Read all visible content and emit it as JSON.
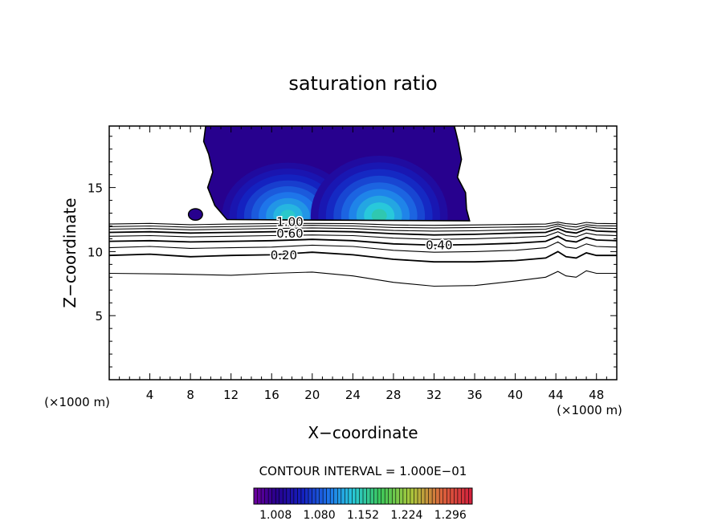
{
  "chart_data": {
    "type": "contour",
    "title": "saturation ratio",
    "xlabel": "X−coordinate",
    "ylabel": "Z−coordinate",
    "x_unit_left": "(×1000 m)",
    "x_unit_right": "(×1000 m)",
    "xlim": [
      0,
      50
    ],
    "ylim": [
      0,
      19.8
    ],
    "x_ticks": [
      4,
      8,
      12,
      16,
      20,
      24,
      28,
      32,
      36,
      40,
      44,
      48
    ],
    "y_ticks": [
      5,
      10,
      15
    ],
    "contour_interval_text": "CONTOUR INTERVAL = 1.000E−01",
    "colorbar": {
      "labels": [
        "1.008",
        "1.080",
        "1.152",
        "1.224",
        "1.296"
      ],
      "min": 0.972,
      "max": 1.332
    },
    "contour_labels": [
      {
        "text": "0.20",
        "x": 17.2,
        "z": 9.7
      },
      {
        "text": "0.40",
        "x": 32.5,
        "z": 10.5
      },
      {
        "text": "0.60",
        "x": 17.8,
        "z": 11.4
      },
      {
        "text": "1.00",
        "x": 17.8,
        "z": 12.3
      }
    ],
    "contour_lines": [
      {
        "level": 0.1,
        "points": [
          [
            0,
            8.3
          ],
          [
            6,
            8.25
          ],
          [
            12,
            8.15
          ],
          [
            16,
            8.3
          ],
          [
            20,
            8.4
          ],
          [
            24,
            8.1
          ],
          [
            28,
            7.6
          ],
          [
            32,
            7.3
          ],
          [
            36,
            7.35
          ],
          [
            40,
            7.7
          ],
          [
            43,
            8.0
          ],
          [
            44.2,
            8.45
          ],
          [
            45,
            8.1
          ],
          [
            46,
            8.0
          ],
          [
            47,
            8.5
          ],
          [
            48,
            8.3
          ],
          [
            50,
            8.3
          ]
        ]
      },
      {
        "level": 0.2,
        "points": [
          [
            0,
            9.7
          ],
          [
            4,
            9.8
          ],
          [
            8,
            9.6
          ],
          [
            12,
            9.7
          ],
          [
            16,
            9.75
          ],
          [
            20,
            9.95
          ],
          [
            24,
            9.75
          ],
          [
            28,
            9.4
          ],
          [
            32,
            9.2
          ],
          [
            36,
            9.2
          ],
          [
            40,
            9.3
          ],
          [
            43,
            9.5
          ],
          [
            44.2,
            10.0
          ],
          [
            45,
            9.6
          ],
          [
            46,
            9.5
          ],
          [
            47,
            9.9
          ],
          [
            48,
            9.7
          ],
          [
            50,
            9.7
          ]
        ]
      },
      {
        "level": 0.3,
        "points": [
          [
            0,
            10.3
          ],
          [
            4,
            10.4
          ],
          [
            8,
            10.25
          ],
          [
            12,
            10.3
          ],
          [
            16,
            10.35
          ],
          [
            20,
            10.5
          ],
          [
            24,
            10.4
          ],
          [
            28,
            10.1
          ],
          [
            32,
            9.95
          ],
          [
            36,
            10.0
          ],
          [
            40,
            10.1
          ],
          [
            43,
            10.3
          ],
          [
            44.2,
            10.75
          ],
          [
            45,
            10.35
          ],
          [
            46,
            10.25
          ],
          [
            47,
            10.6
          ],
          [
            48,
            10.4
          ],
          [
            50,
            10.35
          ]
        ]
      },
      {
        "level": 0.4,
        "points": [
          [
            0,
            10.8
          ],
          [
            4,
            10.85
          ],
          [
            8,
            10.75
          ],
          [
            12,
            10.8
          ],
          [
            16,
            10.85
          ],
          [
            20,
            10.95
          ],
          [
            24,
            10.85
          ],
          [
            28,
            10.6
          ],
          [
            32,
            10.5
          ],
          [
            36,
            10.55
          ],
          [
            40,
            10.65
          ],
          [
            43,
            10.8
          ],
          [
            44.2,
            11.2
          ],
          [
            45,
            10.85
          ],
          [
            46,
            10.75
          ],
          [
            47,
            11.1
          ],
          [
            48,
            10.9
          ],
          [
            50,
            10.85
          ]
        ]
      },
      {
        "level": 0.5,
        "points": [
          [
            0,
            11.2
          ],
          [
            4,
            11.25
          ],
          [
            8,
            11.15
          ],
          [
            12,
            11.2
          ],
          [
            16,
            11.25
          ],
          [
            20,
            11.3
          ],
          [
            24,
            11.25
          ],
          [
            28,
            11.05
          ],
          [
            32,
            10.95
          ],
          [
            36,
            11.0
          ],
          [
            40,
            11.1
          ],
          [
            43,
            11.2
          ],
          [
            44.2,
            11.55
          ],
          [
            45,
            11.25
          ],
          [
            46,
            11.15
          ],
          [
            47,
            11.45
          ],
          [
            48,
            11.3
          ],
          [
            50,
            11.25
          ]
        ]
      },
      {
        "level": 0.6,
        "points": [
          [
            0,
            11.5
          ],
          [
            4,
            11.55
          ],
          [
            8,
            11.45
          ],
          [
            12,
            11.5
          ],
          [
            16,
            11.55
          ],
          [
            20,
            11.6
          ],
          [
            24,
            11.55
          ],
          [
            28,
            11.4
          ],
          [
            32,
            11.3
          ],
          [
            36,
            11.35
          ],
          [
            40,
            11.45
          ],
          [
            43,
            11.5
          ],
          [
            44.2,
            11.8
          ],
          [
            45,
            11.55
          ],
          [
            46,
            11.45
          ],
          [
            47,
            11.75
          ],
          [
            48,
            11.6
          ],
          [
            50,
            11.55
          ]
        ]
      },
      {
        "level": 0.7,
        "points": [
          [
            0,
            11.75
          ],
          [
            4,
            11.8
          ],
          [
            8,
            11.7
          ],
          [
            12,
            11.75
          ],
          [
            16,
            11.8
          ],
          [
            20,
            11.85
          ],
          [
            24,
            11.8
          ],
          [
            28,
            11.65
          ],
          [
            32,
            11.6
          ],
          [
            36,
            11.62
          ],
          [
            40,
            11.7
          ],
          [
            43,
            11.75
          ],
          [
            44.2,
            12.0
          ],
          [
            45,
            11.8
          ],
          [
            46,
            11.7
          ],
          [
            47,
            11.95
          ],
          [
            48,
            11.85
          ],
          [
            50,
            11.8
          ]
        ]
      },
      {
        "level": 0.8,
        "points": [
          [
            0,
            11.95
          ],
          [
            4,
            12.0
          ],
          [
            8,
            11.9
          ],
          [
            12,
            11.95
          ],
          [
            16,
            12.0
          ],
          [
            20,
            12.05
          ],
          [
            24,
            12.0
          ],
          [
            28,
            11.88
          ],
          [
            32,
            11.85
          ],
          [
            36,
            11.88
          ],
          [
            40,
            11.92
          ],
          [
            43,
            11.95
          ],
          [
            44.2,
            12.15
          ],
          [
            45,
            12.0
          ],
          [
            46,
            11.92
          ],
          [
            47,
            12.1
          ],
          [
            48,
            12.02
          ],
          [
            50,
            12.0
          ]
        ]
      },
      {
        "level": 0.9,
        "points": [
          [
            0,
            12.15
          ],
          [
            4,
            12.2
          ],
          [
            8,
            12.1
          ],
          [
            12,
            12.15
          ],
          [
            16,
            12.18
          ],
          [
            20,
            12.2
          ],
          [
            24,
            12.18
          ],
          [
            28,
            12.08
          ],
          [
            32,
            12.05
          ],
          [
            36,
            12.08
          ],
          [
            40,
            12.12
          ],
          [
            43,
            12.15
          ],
          [
            44.2,
            12.3
          ],
          [
            45,
            12.18
          ],
          [
            46,
            12.12
          ],
          [
            47,
            12.28
          ],
          [
            48,
            12.2
          ],
          [
            50,
            12.18
          ]
        ]
      }
    ],
    "shaded_region": {
      "level": 1.0,
      "outline": [
        [
          9.5,
          19.8
        ],
        [
          9.3,
          18.6
        ],
        [
          9.8,
          17.6
        ],
        [
          10.2,
          16.2
        ],
        [
          9.7,
          15.0
        ],
        [
          10.4,
          13.6
        ],
        [
          11.6,
          12.5
        ],
        [
          35.5,
          12.4
        ],
        [
          35.2,
          13.3
        ],
        [
          35.1,
          14.6
        ],
        [
          34.3,
          15.8
        ],
        [
          34.7,
          17.2
        ],
        [
          34.4,
          18.5
        ],
        [
          34.0,
          19.8
        ]
      ],
      "small_blob": {
        "x": 8.5,
        "z": 12.9,
        "rx": 0.7,
        "rz": 0.45
      },
      "base_value": 1.01,
      "maxima": [
        {
          "x": 17.6,
          "z": 12.8,
          "value": 1.14,
          "rx": 7.2,
          "rz": 4.6
        },
        {
          "x": 26.6,
          "z": 12.8,
          "value": 1.15,
          "rx": 7.5,
          "rz": 5.2
        }
      ]
    }
  }
}
